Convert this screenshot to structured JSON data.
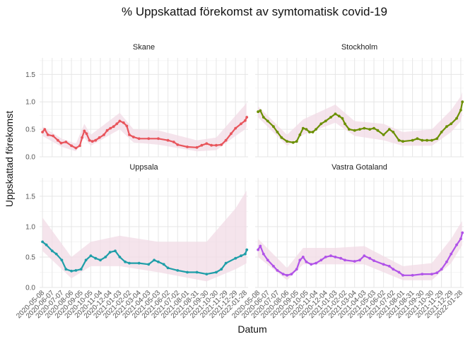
{
  "chart_data": {
    "type": "line",
    "title": "% Uppskattad förekomst av symtomatisk covid-19",
    "xlabel": "Datum",
    "ylabel": "Uppskattad förekomst",
    "ylim": [
      0,
      1.8
    ],
    "yticks": [
      0.0,
      0.5,
      1.0,
      1.5
    ],
    "ytick_labels": [
      "0.0",
      "0.5",
      "1.0",
      "1.5"
    ],
    "x_range": [
      "2020-04-29",
      "2022-02-06"
    ],
    "xticks": [
      "2020-05-08",
      "2020-06-07",
      "2020-07-07",
      "2020-08-06",
      "2020-09-05",
      "2020-10-05",
      "2020-11-04",
      "2020-12-04",
      "2021-01-03",
      "2021-02-02",
      "2021-03-04",
      "2021-04-03",
      "2021-05-03",
      "2021-06-02",
      "2021-07-02",
      "2021-08-01",
      "2021-08-31",
      "2021-09-30",
      "2021-10-30",
      "2021-11-29",
      "2021-12-29",
      "2022-01-28"
    ],
    "grid": true,
    "legend": "none",
    "band_color": "#f2dbe6",
    "panels": [
      {
        "name": "Skane",
        "color": "#e8545b",
        "values": [
          [
            "2020-05-08",
            0.45
          ],
          [
            "2020-05-15",
            0.5
          ],
          [
            "2020-05-25",
            0.4
          ],
          [
            "2020-06-10",
            0.38
          ],
          [
            "2020-06-25",
            0.3
          ],
          [
            "2020-07-05",
            0.25
          ],
          [
            "2020-07-20",
            0.27
          ],
          [
            "2020-08-06",
            0.2
          ],
          [
            "2020-08-20",
            0.16
          ],
          [
            "2020-09-01",
            0.2
          ],
          [
            "2020-09-08",
            0.35
          ],
          [
            "2020-09-15",
            0.47
          ],
          [
            "2020-09-22",
            0.42
          ],
          [
            "2020-10-01",
            0.3
          ],
          [
            "2020-10-10",
            0.28
          ],
          [
            "2020-10-20",
            0.3
          ],
          [
            "2020-11-01",
            0.35
          ],
          [
            "2020-11-15",
            0.4
          ],
          [
            "2020-11-25",
            0.48
          ],
          [
            "2020-12-05",
            0.52
          ],
          [
            "2020-12-15",
            0.55
          ],
          [
            "2020-12-25",
            0.6
          ],
          [
            "2021-01-03",
            0.65
          ],
          [
            "2021-01-15",
            0.62
          ],
          [
            "2021-01-25",
            0.56
          ],
          [
            "2021-02-02",
            0.4
          ],
          [
            "2021-02-15",
            0.36
          ],
          [
            "2021-03-04",
            0.33
          ],
          [
            "2021-04-03",
            0.33
          ],
          [
            "2021-05-03",
            0.33
          ],
          [
            "2021-06-02",
            0.3
          ],
          [
            "2021-06-20",
            0.27
          ],
          [
            "2021-07-02",
            0.22
          ],
          [
            "2021-08-01",
            0.18
          ],
          [
            "2021-08-31",
            0.17
          ],
          [
            "2021-09-15",
            0.21
          ],
          [
            "2021-09-30",
            0.24
          ],
          [
            "2021-10-15",
            0.21
          ],
          [
            "2021-10-30",
            0.21
          ],
          [
            "2021-11-15",
            0.22
          ],
          [
            "2021-11-29",
            0.3
          ],
          [
            "2021-12-15",
            0.42
          ],
          [
            "2021-12-29",
            0.52
          ],
          [
            "2022-01-15",
            0.6
          ],
          [
            "2022-01-28",
            0.66
          ],
          [
            "2022-02-02",
            0.72
          ]
        ],
        "lower": [
          [
            "2020-05-08",
            0.38
          ],
          [
            "2020-07-07",
            0.18
          ],
          [
            "2020-08-20",
            0.1
          ],
          [
            "2020-09-15",
            0.35
          ],
          [
            "2020-10-05",
            0.2
          ],
          [
            "2021-01-03",
            0.5
          ],
          [
            "2021-02-15",
            0.26
          ],
          [
            "2021-05-03",
            0.22
          ],
          [
            "2021-08-31",
            0.1
          ],
          [
            "2021-10-30",
            0.12
          ],
          [
            "2021-12-29",
            0.38
          ],
          [
            "2022-01-28",
            0.5
          ],
          [
            "2022-02-02",
            0.55
          ]
        ],
        "upper": [
          [
            "2020-05-08",
            0.55
          ],
          [
            "2020-07-07",
            0.33
          ],
          [
            "2020-08-20",
            0.24
          ],
          [
            "2020-09-15",
            0.6
          ],
          [
            "2020-10-05",
            0.4
          ],
          [
            "2021-01-03",
            0.8
          ],
          [
            "2021-02-15",
            0.5
          ],
          [
            "2021-05-03",
            0.48
          ],
          [
            "2021-08-31",
            0.3
          ],
          [
            "2021-10-30",
            0.35
          ],
          [
            "2021-12-29",
            0.75
          ],
          [
            "2022-01-28",
            0.95
          ],
          [
            "2022-02-02",
            1.0
          ]
        ]
      },
      {
        "name": "Stockholm",
        "color": "#6b8f00",
        "values": [
          [
            "2020-05-08",
            0.82
          ],
          [
            "2020-05-15",
            0.84
          ],
          [
            "2020-05-25",
            0.72
          ],
          [
            "2020-06-07",
            0.65
          ],
          [
            "2020-06-25",
            0.55
          ],
          [
            "2020-07-07",
            0.45
          ],
          [
            "2020-07-20",
            0.35
          ],
          [
            "2020-08-06",
            0.28
          ],
          [
            "2020-08-25",
            0.26
          ],
          [
            "2020-09-05",
            0.28
          ],
          [
            "2020-09-15",
            0.4
          ],
          [
            "2020-09-25",
            0.52
          ],
          [
            "2020-10-05",
            0.5
          ],
          [
            "2020-10-15",
            0.45
          ],
          [
            "2020-10-25",
            0.45
          ],
          [
            "2020-11-04",
            0.5
          ],
          [
            "2020-11-20",
            0.6
          ],
          [
            "2020-12-04",
            0.65
          ],
          [
            "2020-12-20",
            0.72
          ],
          [
            "2021-01-03",
            0.78
          ],
          [
            "2021-01-15",
            0.74
          ],
          [
            "2021-01-25",
            0.7
          ],
          [
            "2021-02-02",
            0.6
          ],
          [
            "2021-02-15",
            0.5
          ],
          [
            "2021-03-04",
            0.48
          ],
          [
            "2021-03-20",
            0.5
          ],
          [
            "2021-04-03",
            0.52
          ],
          [
            "2021-04-20",
            0.5
          ],
          [
            "2021-05-03",
            0.52
          ],
          [
            "2021-05-15",
            0.48
          ],
          [
            "2021-06-02",
            0.4
          ],
          [
            "2021-06-20",
            0.5
          ],
          [
            "2021-07-02",
            0.45
          ],
          [
            "2021-07-20",
            0.3
          ],
          [
            "2021-08-01",
            0.28
          ],
          [
            "2021-08-31",
            0.3
          ],
          [
            "2021-09-15",
            0.33
          ],
          [
            "2021-09-30",
            0.3
          ],
          [
            "2021-10-15",
            0.3
          ],
          [
            "2021-10-30",
            0.3
          ],
          [
            "2021-11-15",
            0.33
          ],
          [
            "2021-11-29",
            0.45
          ],
          [
            "2021-12-15",
            0.55
          ],
          [
            "2021-12-29",
            0.6
          ],
          [
            "2022-01-15",
            0.7
          ],
          [
            "2022-01-28",
            0.85
          ],
          [
            "2022-02-02",
            1.0
          ]
        ],
        "lower": [
          [
            "2020-05-08",
            0.72
          ],
          [
            "2020-08-06",
            0.2
          ],
          [
            "2020-09-25",
            0.4
          ],
          [
            "2021-01-03",
            0.62
          ],
          [
            "2021-03-04",
            0.38
          ],
          [
            "2021-06-02",
            0.3
          ],
          [
            "2021-08-01",
            0.2
          ],
          [
            "2021-10-30",
            0.2
          ],
          [
            "2021-12-29",
            0.45
          ],
          [
            "2022-01-28",
            0.65
          ],
          [
            "2022-02-02",
            0.8
          ]
        ],
        "upper": [
          [
            "2020-05-08",
            0.92
          ],
          [
            "2020-08-06",
            0.4
          ],
          [
            "2020-09-25",
            0.68
          ],
          [
            "2021-01-03",
            0.95
          ],
          [
            "2021-03-04",
            0.65
          ],
          [
            "2021-06-02",
            0.6
          ],
          [
            "2021-08-01",
            0.45
          ],
          [
            "2021-10-30",
            0.5
          ],
          [
            "2021-12-29",
            0.85
          ],
          [
            "2022-01-28",
            1.1
          ],
          [
            "2022-02-02",
            1.2
          ]
        ]
      },
      {
        "name": "Uppsala",
        "color": "#1f9ea8",
        "values": [
          [
            "2020-05-08",
            0.75
          ],
          [
            "2020-05-20",
            0.7
          ],
          [
            "2020-06-07",
            0.6
          ],
          [
            "2020-06-20",
            0.55
          ],
          [
            "2020-07-07",
            0.45
          ],
          [
            "2020-07-20",
            0.3
          ],
          [
            "2020-08-06",
            0.27
          ],
          [
            "2020-08-20",
            0.28
          ],
          [
            "2020-09-05",
            0.3
          ],
          [
            "2020-09-20",
            0.45
          ],
          [
            "2020-10-05",
            0.52
          ],
          [
            "2020-10-20",
            0.48
          ],
          [
            "2020-11-04",
            0.45
          ],
          [
            "2020-11-20",
            0.5
          ],
          [
            "2020-12-04",
            0.58
          ],
          [
            "2020-12-20",
            0.6
          ],
          [
            "2021-01-03",
            0.5
          ],
          [
            "2021-01-20",
            0.42
          ],
          [
            "2021-02-02",
            0.4
          ],
          [
            "2021-03-04",
            0.4
          ],
          [
            "2021-04-03",
            0.38
          ],
          [
            "2021-04-20",
            0.45
          ],
          [
            "2021-05-03",
            0.42
          ],
          [
            "2021-05-20",
            0.38
          ],
          [
            "2021-06-02",
            0.32
          ],
          [
            "2021-07-02",
            0.28
          ],
          [
            "2021-08-01",
            0.25
          ],
          [
            "2021-08-31",
            0.25
          ],
          [
            "2021-09-30",
            0.22
          ],
          [
            "2021-10-30",
            0.25
          ],
          [
            "2021-11-15",
            0.3
          ],
          [
            "2021-11-29",
            0.4
          ],
          [
            "2021-12-29",
            0.48
          ],
          [
            "2022-01-15",
            0.52
          ],
          [
            "2022-01-28",
            0.55
          ],
          [
            "2022-02-02",
            0.62
          ]
        ],
        "lower": [
          [
            "2020-05-08",
            0.6
          ],
          [
            "2020-08-06",
            0.15
          ],
          [
            "2020-10-05",
            0.35
          ],
          [
            "2021-01-03",
            0.35
          ],
          [
            "2021-05-03",
            0.25
          ],
          [
            "2021-09-30",
            0.1
          ],
          [
            "2021-12-29",
            0.3
          ],
          [
            "2022-02-02",
            0.4
          ]
        ],
        "upper": [
          [
            "2020-05-08",
            1.15
          ],
          [
            "2020-08-06",
            0.5
          ],
          [
            "2020-10-05",
            0.75
          ],
          [
            "2021-01-03",
            0.85
          ],
          [
            "2021-05-03",
            0.75
          ],
          [
            "2021-09-30",
            0.75
          ],
          [
            "2021-12-29",
            1.3
          ],
          [
            "2022-02-02",
            1.6
          ]
        ]
      },
      {
        "name": "Vastra Gotaland",
        "color": "#b052e8",
        "values": [
          [
            "2020-05-08",
            0.62
          ],
          [
            "2020-05-15",
            0.68
          ],
          [
            "2020-05-25",
            0.55
          ],
          [
            "2020-06-07",
            0.45
          ],
          [
            "2020-06-25",
            0.35
          ],
          [
            "2020-07-07",
            0.28
          ],
          [
            "2020-07-25",
            0.22
          ],
          [
            "2020-08-06",
            0.2
          ],
          [
            "2020-08-20",
            0.22
          ],
          [
            "2020-09-05",
            0.3
          ],
          [
            "2020-09-15",
            0.45
          ],
          [
            "2020-09-25",
            0.5
          ],
          [
            "2020-10-05",
            0.42
          ],
          [
            "2020-10-20",
            0.38
          ],
          [
            "2020-11-04",
            0.4
          ],
          [
            "2020-11-20",
            0.45
          ],
          [
            "2020-12-04",
            0.5
          ],
          [
            "2020-12-20",
            0.52
          ],
          [
            "2021-01-03",
            0.5
          ],
          [
            "2021-01-20",
            0.48
          ],
          [
            "2021-02-02",
            0.45
          ],
          [
            "2021-03-04",
            0.43
          ],
          [
            "2021-03-20",
            0.45
          ],
          [
            "2021-04-03",
            0.52
          ],
          [
            "2021-04-20",
            0.48
          ],
          [
            "2021-05-03",
            0.44
          ],
          [
            "2021-06-02",
            0.38
          ],
          [
            "2021-06-20",
            0.35
          ],
          [
            "2021-07-02",
            0.3
          ],
          [
            "2021-07-20",
            0.25
          ],
          [
            "2021-08-01",
            0.2
          ],
          [
            "2021-08-31",
            0.2
          ],
          [
            "2021-09-30",
            0.22
          ],
          [
            "2021-10-30",
            0.22
          ],
          [
            "2021-11-15",
            0.24
          ],
          [
            "2021-11-29",
            0.3
          ],
          [
            "2021-12-15",
            0.42
          ],
          [
            "2021-12-29",
            0.55
          ],
          [
            "2022-01-15",
            0.7
          ],
          [
            "2022-01-28",
            0.8
          ],
          [
            "2022-02-02",
            0.9
          ]
        ],
        "lower": [
          [
            "2020-05-08",
            0.5
          ],
          [
            "2020-08-06",
            0.12
          ],
          [
            "2020-09-25",
            0.38
          ],
          [
            "2021-01-03",
            0.38
          ],
          [
            "2021-04-03",
            0.38
          ],
          [
            "2021-08-01",
            0.12
          ],
          [
            "2021-10-30",
            0.12
          ],
          [
            "2021-12-29",
            0.4
          ],
          [
            "2022-02-02",
            0.7
          ]
        ],
        "upper": [
          [
            "2020-05-08",
            0.8
          ],
          [
            "2020-08-06",
            0.32
          ],
          [
            "2020-09-25",
            0.65
          ],
          [
            "2021-01-03",
            0.65
          ],
          [
            "2021-04-03",
            0.68
          ],
          [
            "2021-08-01",
            0.35
          ],
          [
            "2021-10-30",
            0.4
          ],
          [
            "2021-12-29",
            0.8
          ],
          [
            "2022-02-02",
            1.1
          ]
        ]
      }
    ]
  }
}
